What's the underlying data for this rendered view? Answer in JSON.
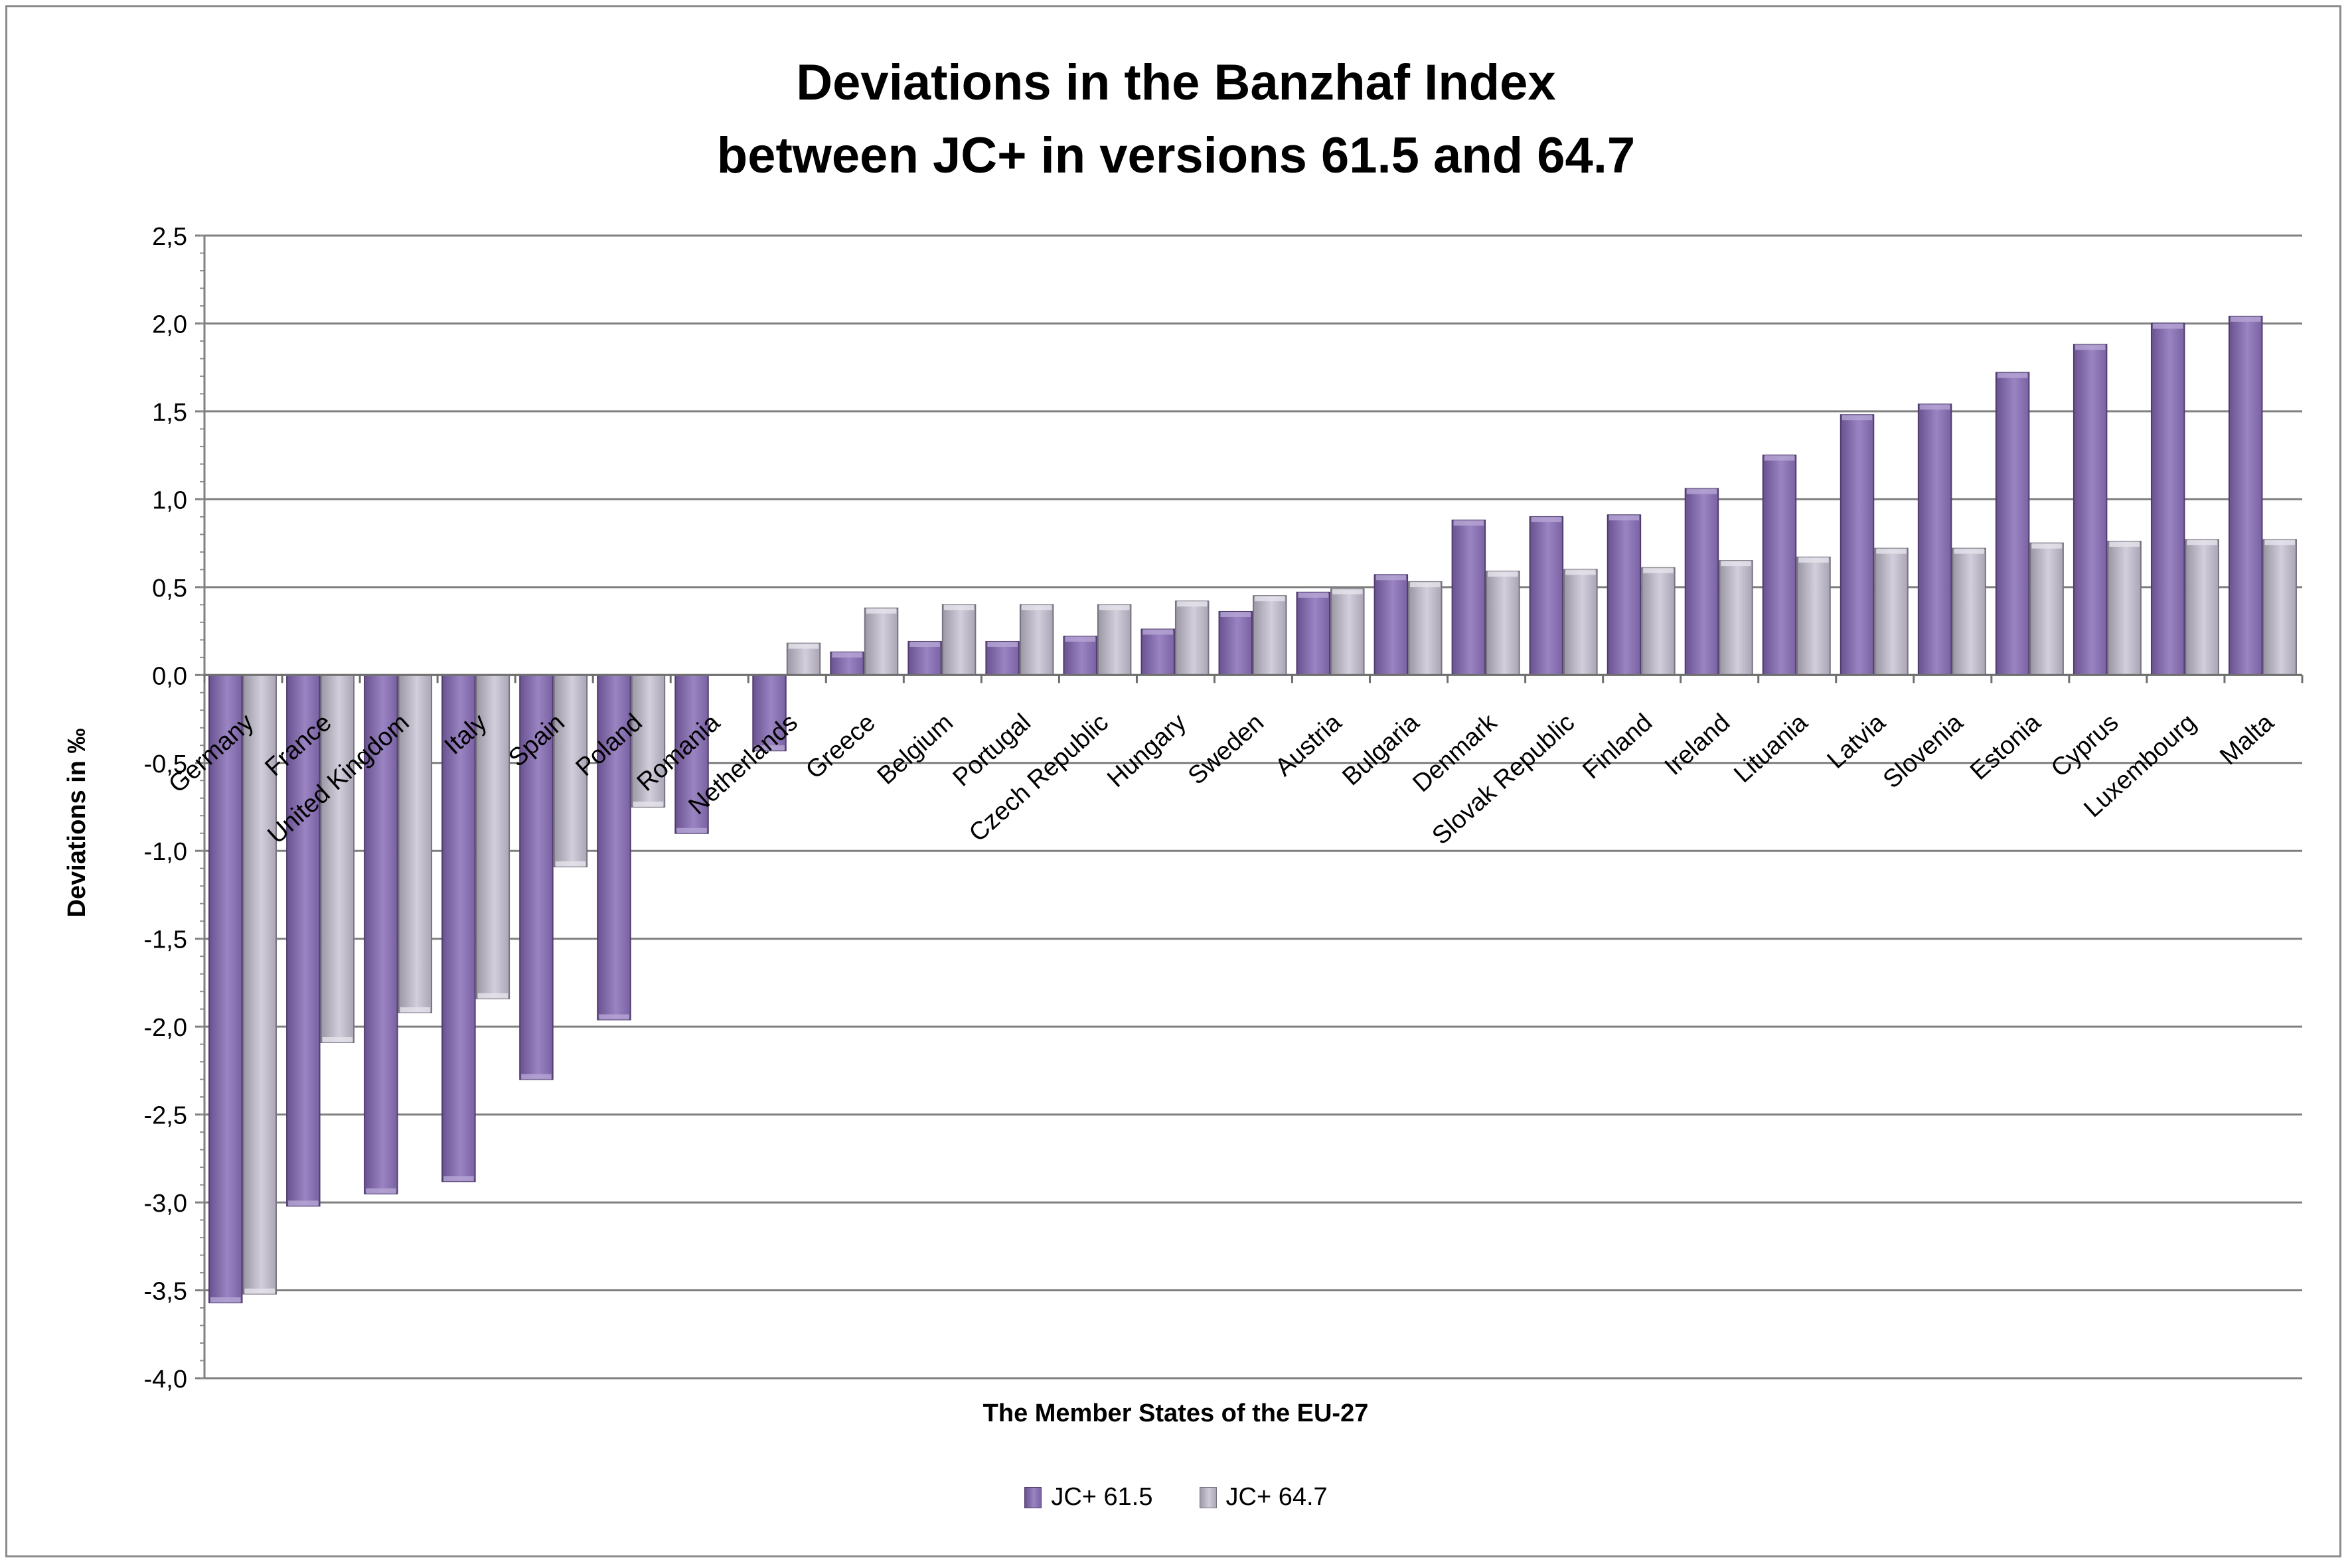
{
  "chart_data": {
    "type": "bar",
    "title_line1": "Deviations in the Banzhaf Index",
    "title_line2": "between JC+ in versions 61.5  and 64.7",
    "xlabel": "The Member States of the EU-27",
    "ylabel": "Deviations in ‰",
    "ylim": [
      -4.0,
      2.5
    ],
    "yticks": [
      "2,5",
      "2,0",
      "1,5",
      "1,0",
      "0,5",
      "0,0",
      "-0,5",
      "-1,0",
      "-1,5",
      "-2,0",
      "-2,5",
      "-3,0",
      "-3,5",
      "-4,0"
    ],
    "ytick_values": [
      2.5,
      2.0,
      1.5,
      1.0,
      0.5,
      0.0,
      -0.5,
      -1.0,
      -1.5,
      -2.0,
      -2.5,
      -3.0,
      -3.5,
      -4.0
    ],
    "grid": true,
    "legend_position": "bottom",
    "categories": [
      "Germany",
      "France",
      "United Kingdom",
      "Italy",
      "Spain",
      "Poland",
      "Romania",
      "Netherlands",
      "Greece",
      "Belgium",
      "Portugal",
      "Czech Republic",
      "Hungary",
      "Sweden",
      "Austria",
      "Bulgaria",
      "Denmark",
      "Slovak Republic",
      "Finland",
      "Ireland",
      "Lituania",
      "Latvia",
      "Slovenia",
      "Estonia",
      "Cyprus",
      "Luxembourg",
      "Malta"
    ],
    "series": [
      {
        "name": "JC+ 61.5",
        "color": "#8c76b6",
        "values": [
          -3.57,
          -3.02,
          -2.95,
          -2.88,
          -2.3,
          -1.96,
          -0.9,
          -0.43,
          0.13,
          0.19,
          0.19,
          0.22,
          0.26,
          0.36,
          0.47,
          0.57,
          0.88,
          0.9,
          0.91,
          1.06,
          1.25,
          1.48,
          1.54,
          1.72,
          1.88,
          2.0,
          2.04
        ]
      },
      {
        "name": "JC+ 64.7",
        "color": "#bdb9c7",
        "values": [
          -3.52,
          -2.09,
          -1.92,
          -1.84,
          -1.09,
          -0.75,
          0.0,
          0.18,
          0.38,
          0.4,
          0.4,
          0.4,
          0.42,
          0.45,
          0.49,
          0.53,
          0.59,
          0.6,
          0.61,
          0.65,
          0.67,
          0.72,
          0.72,
          0.75,
          0.76,
          0.77,
          0.77
        ]
      }
    ]
  }
}
